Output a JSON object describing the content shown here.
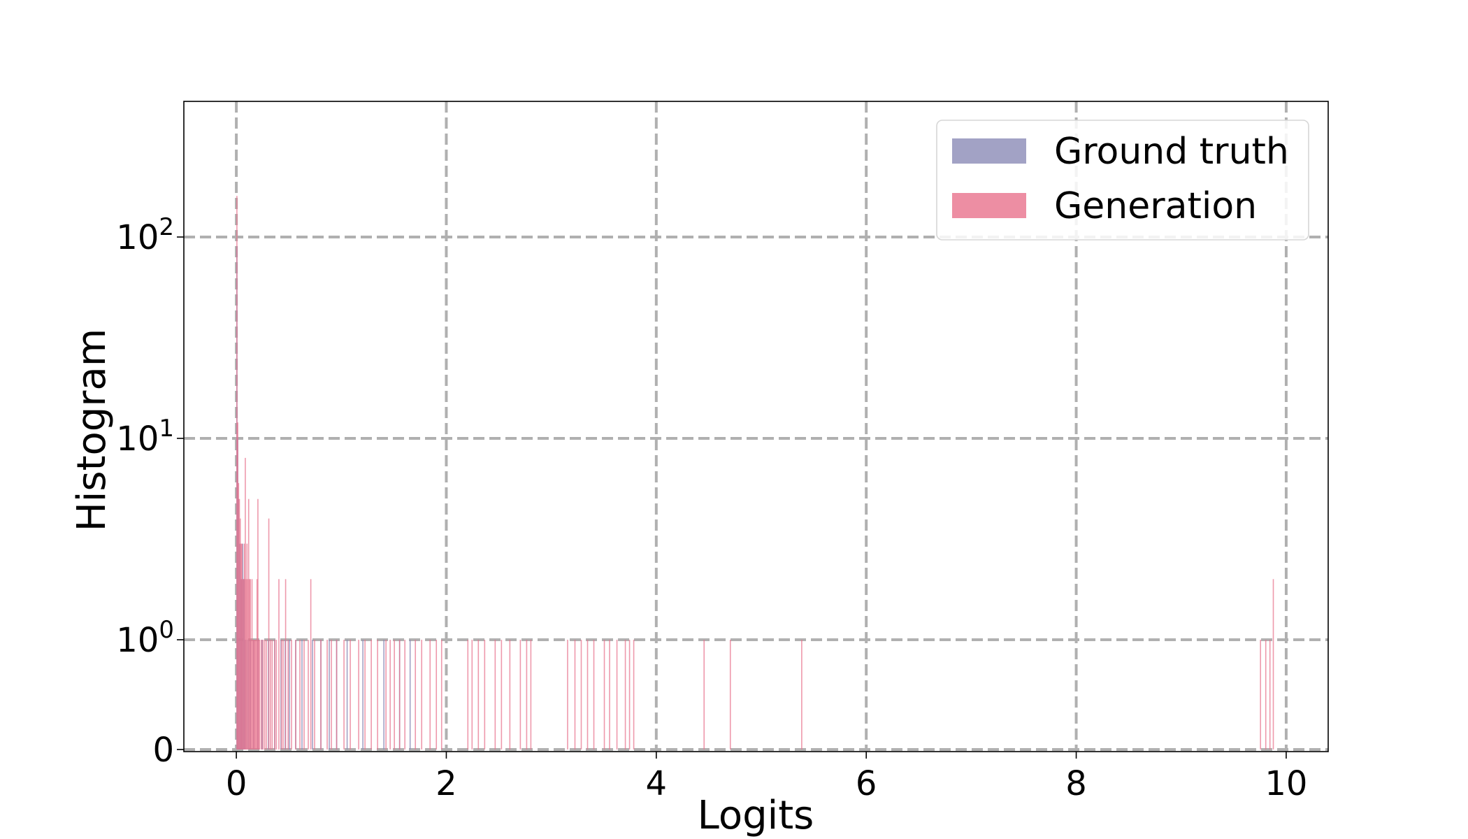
{
  "chart_data": {
    "type": "bar",
    "subtype": "histogram",
    "xlabel": "Logits",
    "ylabel": "Histogram",
    "x_ticks": [
      "0",
      "2",
      "4",
      "6",
      "8",
      "10"
    ],
    "x_tick_values": [
      0,
      2,
      4,
      6,
      8,
      10
    ],
    "xlim": [
      -0.5,
      10.4
    ],
    "yscale": "symlog",
    "ylim": [
      0,
      220
    ],
    "y_ticks": [
      {
        "value": 0,
        "base": "0",
        "exp": ""
      },
      {
        "value": 1,
        "base": "10",
        "exp": "0"
      },
      {
        "value": 10,
        "base": "10",
        "exp": "1"
      },
      {
        "value": 100,
        "base": "10",
        "exp": "2"
      }
    ],
    "grid": true,
    "legend_position": "top-right",
    "series": [
      {
        "name": "Ground truth",
        "color": "#8b8bb6",
        "bin_width": 0.008,
        "bins": [
          [
            0.0,
            90
          ],
          [
            0.008,
            10
          ],
          [
            0.016,
            5
          ],
          [
            0.024,
            3
          ],
          [
            0.032,
            3
          ],
          [
            0.04,
            2
          ],
          [
            0.048,
            2
          ],
          [
            0.056,
            3
          ],
          [
            0.064,
            2
          ],
          [
            0.072,
            2
          ],
          [
            0.08,
            1
          ],
          [
            0.096,
            1
          ],
          [
            0.112,
            1
          ],
          [
            0.128,
            1
          ],
          [
            0.16,
            1
          ],
          [
            0.2,
            1
          ],
          [
            0.24,
            1
          ],
          [
            0.3,
            1
          ],
          [
            0.36,
            1
          ],
          [
            0.42,
            1
          ],
          [
            0.46,
            1
          ],
          [
            0.5,
            1
          ],
          [
            0.56,
            1
          ],
          [
            0.62,
            1
          ],
          [
            0.72,
            1
          ],
          [
            0.8,
            1
          ],
          [
            0.88,
            1
          ],
          [
            0.95,
            1
          ],
          [
            1.05,
            1
          ],
          [
            1.2,
            1
          ],
          [
            1.4,
            1
          ],
          [
            1.55,
            1
          ],
          [
            1.65,
            1
          ]
        ]
      },
      {
        "name": "Generation",
        "color": "#e8728c",
        "bin_width": 0.008,
        "bins": [
          [
            0.0,
            160
          ],
          [
            0.008,
            12
          ],
          [
            0.016,
            6
          ],
          [
            0.024,
            5
          ],
          [
            0.032,
            4
          ],
          [
            0.04,
            3
          ],
          [
            0.048,
            3
          ],
          [
            0.056,
            2
          ],
          [
            0.064,
            2
          ],
          [
            0.072,
            3
          ],
          [
            0.08,
            8
          ],
          [
            0.088,
            2
          ],
          [
            0.096,
            3
          ],
          [
            0.104,
            2
          ],
          [
            0.112,
            5
          ],
          [
            0.12,
            2
          ],
          [
            0.128,
            2
          ],
          [
            0.136,
            1
          ],
          [
            0.144,
            2
          ],
          [
            0.152,
            1
          ],
          [
            0.16,
            1
          ],
          [
            0.168,
            1
          ],
          [
            0.176,
            1
          ],
          [
            0.184,
            1
          ],
          [
            0.192,
            2
          ],
          [
            0.2,
            5
          ],
          [
            0.208,
            1
          ],
          [
            0.216,
            1
          ],
          [
            0.232,
            1
          ],
          [
            0.248,
            1
          ],
          [
            0.264,
            1
          ],
          [
            0.28,
            1
          ],
          [
            0.304,
            4
          ],
          [
            0.32,
            1
          ],
          [
            0.336,
            1
          ],
          [
            0.36,
            1
          ],
          [
            0.376,
            1
          ],
          [
            0.4,
            2
          ],
          [
            0.424,
            1
          ],
          [
            0.44,
            1
          ],
          [
            0.464,
            2
          ],
          [
            0.488,
            1
          ],
          [
            0.52,
            1
          ],
          [
            0.56,
            1
          ],
          [
            0.6,
            1
          ],
          [
            0.64,
            1
          ],
          [
            0.68,
            1
          ],
          [
            0.704,
            2
          ],
          [
            0.74,
            1
          ],
          [
            0.8,
            1
          ],
          [
            0.86,
            1
          ],
          [
            0.9,
            1
          ],
          [
            0.95,
            1
          ],
          [
            1.02,
            1
          ],
          [
            1.08,
            1
          ],
          [
            1.16,
            1
          ],
          [
            1.22,
            1
          ],
          [
            1.28,
            1
          ],
          [
            1.34,
            1
          ],
          [
            1.42,
            1
          ],
          [
            1.46,
            1
          ],
          [
            1.5,
            1
          ],
          [
            1.55,
            1
          ],
          [
            1.6,
            1
          ],
          [
            1.7,
            1
          ],
          [
            1.76,
            1
          ],
          [
            1.84,
            1
          ],
          [
            1.9,
            1
          ],
          [
            1.95,
            1
          ],
          [
            2.2,
            1
          ],
          [
            2.24,
            1
          ],
          [
            2.3,
            1
          ],
          [
            2.36,
            1
          ],
          [
            2.46,
            1
          ],
          [
            2.52,
            1
          ],
          [
            2.6,
            1
          ],
          [
            2.7,
            1
          ],
          [
            2.76,
            1
          ],
          [
            2.8,
            1
          ],
          [
            3.15,
            1
          ],
          [
            3.22,
            1
          ],
          [
            3.28,
            1
          ],
          [
            3.34,
            1
          ],
          [
            3.4,
            1
          ],
          [
            3.5,
            1
          ],
          [
            3.55,
            1
          ],
          [
            3.62,
            1
          ],
          [
            3.7,
            1
          ],
          [
            3.74,
            1
          ],
          [
            3.78,
            1
          ],
          [
            4.45,
            1
          ],
          [
            4.7,
            1
          ],
          [
            5.38,
            1
          ],
          [
            9.75,
            1
          ],
          [
            9.8,
            1
          ],
          [
            9.84,
            1
          ],
          [
            9.872,
            2
          ]
        ]
      }
    ]
  }
}
